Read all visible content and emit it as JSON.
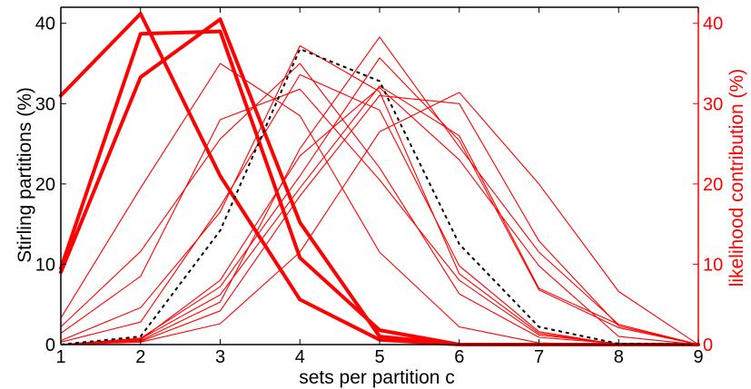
{
  "chart_data": {
    "type": "line",
    "title": "",
    "xlabel": "sets per partition c",
    "ylabel_left": "Stirling partitions (%)",
    "ylabel_right": "likelihood contribution (%)",
    "x": [
      1,
      2,
      3,
      4,
      5,
      6,
      7,
      8,
      9
    ],
    "xlim": [
      1,
      9
    ],
    "ylim_left": [
      0,
      42
    ],
    "ylim_right": [
      0,
      42
    ],
    "xticks": [
      "1",
      "2",
      "3",
      "4",
      "5",
      "6",
      "7",
      "8",
      "9"
    ],
    "yticks_left": [
      "0",
      "10",
      "20",
      "30",
      "40"
    ],
    "yticks_right": [
      "0",
      "10",
      "20",
      "30",
      "40"
    ],
    "grid": false,
    "legend": "none",
    "colors": {
      "likelihood": "#ff0000",
      "stirling": "#000000"
    },
    "stirling_series": {
      "values": [
        0.0,
        1.0,
        14.2,
        36.8,
        32.8,
        12.5,
        2.2,
        0.1,
        0.0
      ],
      "style": "dashed",
      "color": "#000000",
      "axis": "left"
    },
    "likelihood_series": [
      {
        "values": [
          31.0,
          41.2,
          21.0,
          5.6,
          0.6,
          0.0,
          0.0,
          0.0,
          0.0
        ],
        "width": "thick",
        "axis": "right"
      },
      {
        "values": [
          9.0,
          33.3,
          40.5,
          15.2,
          1.0,
          0.0,
          0.0,
          0.0,
          0.0
        ],
        "width": "thick",
        "axis": "right"
      },
      {
        "values": [
          9.5,
          38.7,
          39.0,
          10.8,
          1.8,
          0.0,
          0.0,
          0.0,
          0.0
        ],
        "width": "thick",
        "axis": "right"
      },
      {
        "values": [
          3.3,
          19.5,
          35.0,
          28.5,
          11.5,
          2.2,
          0.2,
          0.0,
          0.0
        ],
        "width": "thin",
        "axis": "right"
      },
      {
        "values": [
          2.2,
          11.6,
          25.6,
          35.0,
          22.0,
          6.3,
          0.9,
          0.1,
          0.0
        ],
        "width": "thin",
        "axis": "right"
      },
      {
        "values": [
          1.4,
          8.5,
          28.0,
          31.8,
          20.5,
          8.0,
          1.2,
          0.1,
          0.0
        ],
        "width": "thin",
        "axis": "right"
      },
      {
        "values": [
          0.5,
          4.6,
          16.5,
          37.2,
          31.5,
          8.8,
          1.4,
          0.0,
          0.0
        ],
        "width": "thin",
        "axis": "right"
      },
      {
        "values": [
          0.3,
          2.8,
          17.2,
          33.6,
          29.2,
          9.8,
          1.6,
          0.0,
          0.0
        ],
        "width": "thin",
        "axis": "right"
      },
      {
        "values": [
          0.0,
          0.8,
          7.2,
          21.0,
          35.7,
          25.4,
          6.8,
          2.1,
          0.0
        ],
        "width": "thin",
        "axis": "right"
      },
      {
        "values": [
          0.0,
          0.7,
          6.2,
          19.5,
          32.2,
          26.0,
          7.0,
          2.5,
          0.0
        ],
        "width": "thin",
        "axis": "right"
      },
      {
        "values": [
          0.0,
          0.5,
          5.3,
          24.4,
          38.3,
          24.6,
          11.5,
          2.5,
          0.0
        ],
        "width": "thin",
        "axis": "right"
      },
      {
        "values": [
          0.0,
          0.4,
          4.2,
          18.5,
          31.0,
          30.0,
          12.9,
          2.3,
          0.0
        ],
        "width": "thin",
        "axis": "right"
      },
      {
        "values": [
          0.0,
          0.3,
          2.6,
          11.5,
          26.5,
          31.4,
          20.0,
          6.6,
          0.0
        ],
        "width": "thin",
        "axis": "right"
      },
      {
        "values": [
          0.0,
          0.6,
          8.0,
          23.5,
          32.0,
          23.0,
          9.8,
          1.0,
          0.0
        ],
        "width": "thin",
        "axis": "right"
      }
    ]
  }
}
